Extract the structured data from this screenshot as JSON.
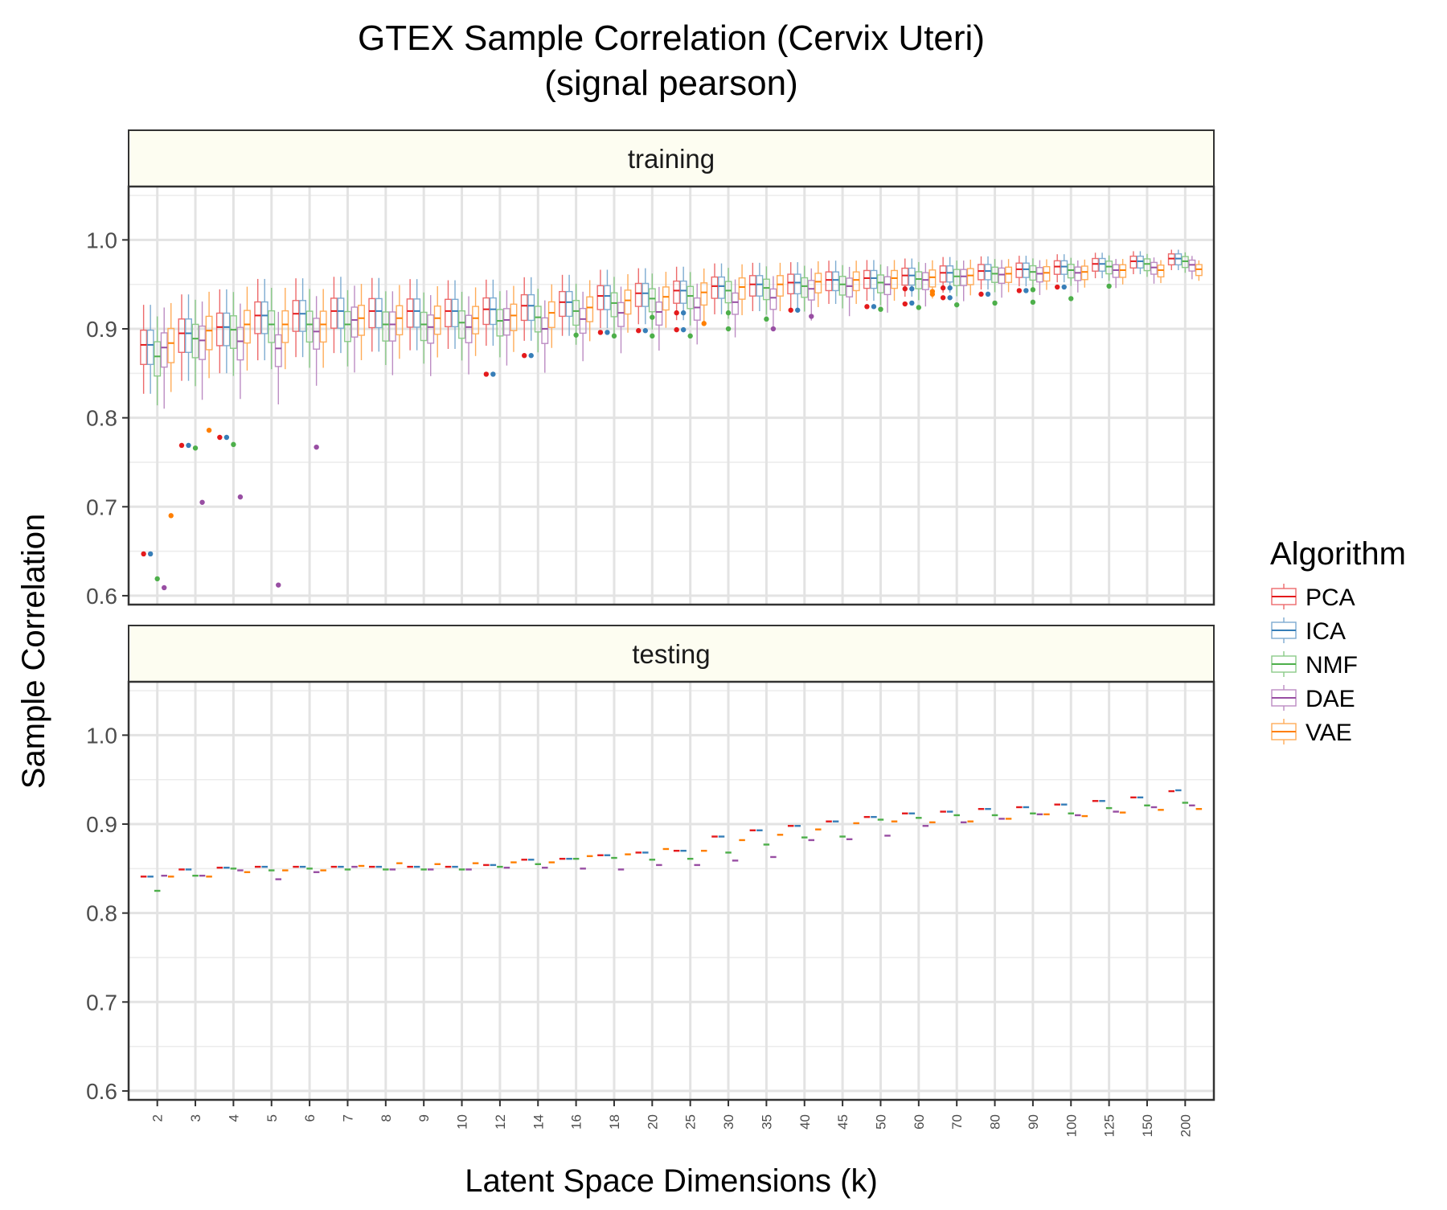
{
  "title_line1": "GTEX Sample Correlation (Cervix Uteri)",
  "title_line2": "(signal pearson)",
  "xlabel": "Latent Space Dimensions (k)",
  "ylabel": "Sample Correlation",
  "legend_title": "Algorithm",
  "colors": {
    "PCA": "#e41a1c",
    "ICA": "#377eb8",
    "NMF": "#4daf4a",
    "DAE": "#984ea3",
    "VAE": "#ff7f00"
  },
  "chart_data": {
    "type": "box",
    "algorithms": [
      "PCA",
      "ICA",
      "NMF",
      "DAE",
      "VAE"
    ],
    "categories": [
      "2",
      "3",
      "4",
      "5",
      "6",
      "7",
      "8",
      "9",
      "10",
      "12",
      "14",
      "16",
      "18",
      "20",
      "25",
      "30",
      "35",
      "40",
      "45",
      "50",
      "60",
      "70",
      "80",
      "90",
      "100",
      "125",
      "150",
      "200"
    ],
    "y_ticks": [
      "0.6",
      "0.7",
      "0.8",
      "0.9",
      "1.0"
    ],
    "ylim": [
      0.59,
      1.06
    ],
    "grid": true,
    "legend_position": "right",
    "panels": [
      {
        "label": "training",
        "medians": {
          "PCA": [
            0.882,
            0.895,
            0.902,
            0.915,
            0.917,
            0.92,
            0.92,
            0.92,
            0.92,
            0.922,
            0.926,
            0.93,
            0.937,
            0.94,
            0.943,
            0.948,
            0.95,
            0.952,
            0.955,
            0.957,
            0.96,
            0.963,
            0.965,
            0.967,
            0.97,
            0.973,
            0.976,
            0.979
          ],
          "ICA": [
            0.882,
            0.895,
            0.902,
            0.915,
            0.917,
            0.92,
            0.92,
            0.92,
            0.92,
            0.922,
            0.926,
            0.93,
            0.937,
            0.94,
            0.943,
            0.948,
            0.95,
            0.952,
            0.955,
            0.957,
            0.96,
            0.963,
            0.965,
            0.967,
            0.97,
            0.973,
            0.976,
            0.979
          ],
          "NMF": [
            0.869,
            0.889,
            0.899,
            0.905,
            0.905,
            0.905,
            0.905,
            0.905,
            0.907,
            0.909,
            0.913,
            0.92,
            0.929,
            0.934,
            0.937,
            0.943,
            0.946,
            0.948,
            0.95,
            0.952,
            0.956,
            0.959,
            0.962,
            0.964,
            0.966,
            0.97,
            0.973,
            0.976
          ],
          "DAE": [
            0.879,
            0.887,
            0.886,
            0.878,
            0.897,
            0.91,
            0.905,
            0.902,
            0.902,
            0.91,
            0.9,
            0.911,
            0.918,
            0.919,
            0.924,
            0.93,
            0.935,
            0.945,
            0.948,
            0.95,
            0.955,
            0.959,
            0.961,
            0.962,
            0.963,
            0.966,
            0.969,
            0.972
          ],
          "VAE": [
            0.884,
            0.898,
            0.905,
            0.905,
            0.905,
            0.912,
            0.912,
            0.912,
            0.912,
            0.915,
            0.918,
            0.924,
            0.932,
            0.936,
            0.941,
            0.947,
            0.95,
            0.953,
            0.955,
            0.957,
            0.958,
            0.96,
            0.962,
            0.963,
            0.964,
            0.966,
            0.966,
            0.967
          ]
        },
        "outliers": [
          [
            "2",
            "PCA",
            0.647
          ],
          [
            "2",
            "ICA",
            0.647
          ],
          [
            "2",
            "NMF",
            0.619
          ],
          [
            "2",
            "DAE",
            0.609
          ],
          [
            "2",
            "VAE",
            0.69
          ],
          [
            "3",
            "PCA",
            0.769
          ],
          [
            "3",
            "ICA",
            0.769
          ],
          [
            "3",
            "NMF",
            0.766
          ],
          [
            "3",
            "DAE",
            0.705
          ],
          [
            "3",
            "VAE",
            0.786
          ],
          [
            "4",
            "PCA",
            0.778
          ],
          [
            "4",
            "ICA",
            0.778
          ],
          [
            "4",
            "NMF",
            0.77
          ],
          [
            "4",
            "DAE",
            0.711
          ],
          [
            "5",
            "DAE",
            0.612
          ],
          [
            "6",
            "DAE",
            0.767
          ],
          [
            "12",
            "PCA",
            0.849
          ],
          [
            "12",
            "ICA",
            0.849
          ],
          [
            "14",
            "PCA",
            0.87
          ],
          [
            "14",
            "ICA",
            0.87
          ],
          [
            "16",
            "NMF",
            0.893
          ],
          [
            "18",
            "PCA",
            0.896
          ],
          [
            "18",
            "ICA",
            0.896
          ],
          [
            "18",
            "NMF",
            0.892
          ],
          [
            "20",
            "PCA",
            0.898
          ],
          [
            "20",
            "ICA",
            0.898
          ],
          [
            "20",
            "NMF",
            0.892
          ],
          [
            "20",
            "NMF",
            0.913
          ],
          [
            "25",
            "PCA",
            0.918
          ],
          [
            "25",
            "ICA",
            0.918
          ],
          [
            "25",
            "PCA",
            0.899
          ],
          [
            "25",
            "ICA",
            0.899
          ],
          [
            "25",
            "NMF",
            0.892
          ],
          [
            "25",
            "VAE",
            0.906
          ],
          [
            "30",
            "NMF",
            0.918
          ],
          [
            "30",
            "NMF",
            0.9
          ],
          [
            "35",
            "NMF",
            0.911
          ],
          [
            "35",
            "DAE",
            0.9
          ],
          [
            "40",
            "PCA",
            0.921
          ],
          [
            "40",
            "ICA",
            0.921
          ],
          [
            "40",
            "DAE",
            0.914
          ],
          [
            "50",
            "PCA",
            0.925
          ],
          [
            "50",
            "ICA",
            0.925
          ],
          [
            "50",
            "NMF",
            0.922
          ],
          [
            "60",
            "PCA",
            0.945
          ],
          [
            "60",
            "ICA",
            0.945
          ],
          [
            "60",
            "PCA",
            0.928
          ],
          [
            "60",
            "ICA",
            0.929
          ],
          [
            "60",
            "NMF",
            0.924
          ],
          [
            "60",
            "VAE",
            0.942
          ],
          [
            "60",
            "VAE",
            0.939
          ],
          [
            "70",
            "PCA",
            0.946
          ],
          [
            "70",
            "ICA",
            0.946
          ],
          [
            "70",
            "PCA",
            0.935
          ],
          [
            "70",
            "ICA",
            0.935
          ],
          [
            "70",
            "NMF",
            0.927
          ],
          [
            "80",
            "PCA",
            0.939
          ],
          [
            "80",
            "ICA",
            0.939
          ],
          [
            "80",
            "NMF",
            0.929
          ],
          [
            "90",
            "PCA",
            0.943
          ],
          [
            "90",
            "ICA",
            0.943
          ],
          [
            "90",
            "NMF",
            0.944
          ],
          [
            "90",
            "NMF",
            0.93
          ],
          [
            "100",
            "PCA",
            0.947
          ],
          [
            "100",
            "ICA",
            0.947
          ],
          [
            "100",
            "NMF",
            0.934
          ],
          [
            "125",
            "NMF",
            0.948
          ]
        ]
      },
      {
        "label": "testing",
        "values": {
          "PCA": [
            0.841,
            0.849,
            0.851,
            0.852,
            0.852,
            0.852,
            0.852,
            0.852,
            0.852,
            0.854,
            0.86,
            0.861,
            0.865,
            0.868,
            0.87,
            0.886,
            0.893,
            0.898,
            0.903,
            0.908,
            0.912,
            0.914,
            0.917,
            0.919,
            0.922,
            0.926,
            0.93,
            0.937
          ],
          "ICA": [
            0.841,
            0.849,
            0.851,
            0.852,
            0.852,
            0.852,
            0.852,
            0.852,
            0.852,
            0.854,
            0.86,
            0.861,
            0.865,
            0.868,
            0.87,
            0.886,
            0.893,
            0.898,
            0.903,
            0.908,
            0.912,
            0.914,
            0.917,
            0.919,
            0.922,
            0.926,
            0.93,
            0.938
          ],
          "NMF": [
            0.825,
            0.842,
            0.85,
            0.848,
            0.85,
            0.849,
            0.849,
            0.849,
            0.849,
            0.852,
            0.855,
            0.861,
            0.862,
            0.86,
            0.861,
            0.868,
            0.877,
            0.885,
            0.886,
            0.905,
            0.907,
            0.91,
            0.91,
            0.912,
            0.912,
            0.918,
            0.921,
            0.924
          ],
          "DAE": [
            0.842,
            0.842,
            0.848,
            0.838,
            0.846,
            0.852,
            0.849,
            0.849,
            0.849,
            0.851,
            0.851,
            0.85,
            0.849,
            0.854,
            0.854,
            0.859,
            0.863,
            0.882,
            0.883,
            0.887,
            0.898,
            0.902,
            0.906,
            0.911,
            0.91,
            0.914,
            0.919,
            0.921
          ],
          "VAE": [
            0.841,
            0.841,
            0.846,
            0.848,
            0.848,
            0.853,
            0.856,
            0.855,
            0.856,
            0.857,
            0.857,
            0.864,
            0.866,
            0.872,
            0.87,
            0.882,
            0.888,
            0.894,
            0.901,
            0.903,
            0.902,
            0.903,
            0.906,
            0.911,
            0.909,
            0.913,
            0.916,
            0.917
          ]
        }
      }
    ]
  }
}
